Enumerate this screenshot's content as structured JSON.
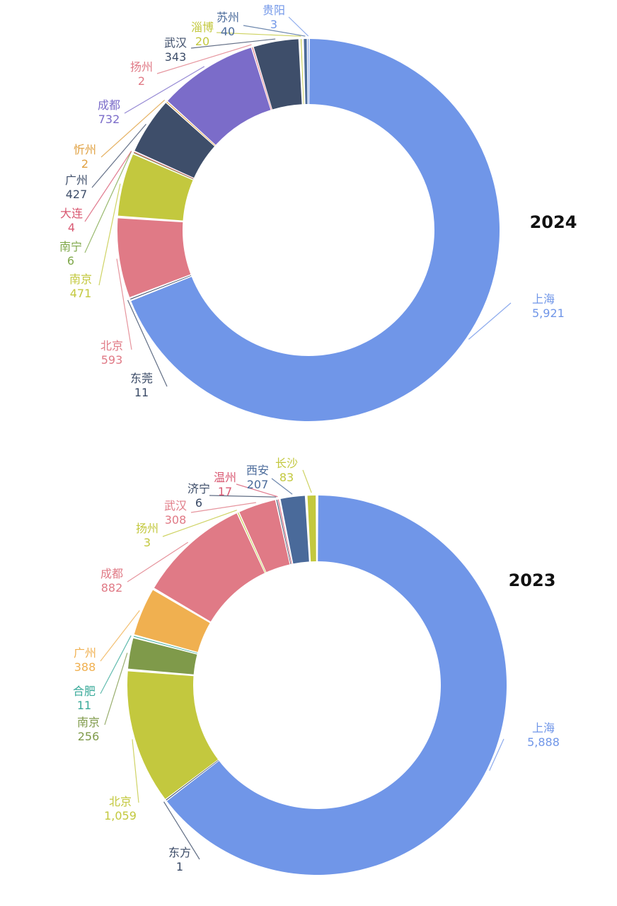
{
  "chart_data": [
    {
      "type": "pie",
      "donut": true,
      "title": "2024",
      "slices": [
        {
          "label": "上海",
          "value_text": "5,921",
          "value": 5921,
          "color": "#7096e8"
        },
        {
          "label": "东莞",
          "value_text": "11",
          "value": 11,
          "color": "#3a4a66"
        },
        {
          "label": "北京",
          "value_text": "593",
          "value": 593,
          "color": "#e07a86"
        },
        {
          "label": "南京",
          "value_text": "471",
          "value": 471,
          "color": "#c3c83e"
        },
        {
          "label": "南宁",
          "value_text": "6",
          "value": 6,
          "color": "#7fa84a"
        },
        {
          "label": "大连",
          "value_text": "4",
          "value": 4,
          "color": "#d95a73"
        },
        {
          "label": "广州",
          "value_text": "427",
          "value": 427,
          "color": "#3e4e6a"
        },
        {
          "label": "忻州",
          "value_text": "2",
          "value": 2,
          "color": "#e0a040"
        },
        {
          "label": "成都",
          "value_text": "732",
          "value": 732,
          "color": "#7b6cc9"
        },
        {
          "label": "扬州",
          "value_text": "2",
          "value": 2,
          "color": "#e07a86"
        },
        {
          "label": "武汉",
          "value_text": "343",
          "value": 343,
          "color": "#3e4e6a"
        },
        {
          "label": "淄博",
          "value_text": "20",
          "value": 20,
          "color": "#c3c83e"
        },
        {
          "label": "苏州",
          "value_text": "40",
          "value": 40,
          "color": "#4a6a9a"
        },
        {
          "label": "贵阳",
          "value_text": "3",
          "value": 3,
          "color": "#7096e8"
        }
      ]
    },
    {
      "type": "pie",
      "donut": true,
      "title": "2023",
      "slices": [
        {
          "label": "上海",
          "value_text": "5,888",
          "value": 5888,
          "color": "#7096e8"
        },
        {
          "label": "东方",
          "value_text": "1",
          "value": 1,
          "color": "#3a4a66"
        },
        {
          "label": "北京",
          "value_text": "1,059",
          "value": 1059,
          "color": "#c3c83e"
        },
        {
          "label": "南京",
          "value_text": "256",
          "value": 256,
          "color": "#7f9a4a"
        },
        {
          "label": "合肥",
          "value_text": "11",
          "value": 11,
          "color": "#3aaa9a"
        },
        {
          "label": "广州",
          "value_text": "388",
          "value": 388,
          "color": "#f0b050"
        },
        {
          "label": "成都",
          "value_text": "882",
          "value": 882,
          "color": "#e07a86"
        },
        {
          "label": "扬州",
          "value_text": "3",
          "value": 3,
          "color": "#c3c83e"
        },
        {
          "label": "武汉",
          "value_text": "308",
          "value": 308,
          "color": "#e07a86"
        },
        {
          "label": "济宁",
          "value_text": "6",
          "value": 6,
          "color": "#3a4a66"
        },
        {
          "label": "温州",
          "value_text": "17",
          "value": 17,
          "color": "#d95a73"
        },
        {
          "label": "西安",
          "value_text": "207",
          "value": 207,
          "color": "#4a6a9a"
        },
        {
          "label": "长沙",
          "value_text": "83",
          "value": 83,
          "color": "#c3c83e"
        }
      ]
    }
  ]
}
